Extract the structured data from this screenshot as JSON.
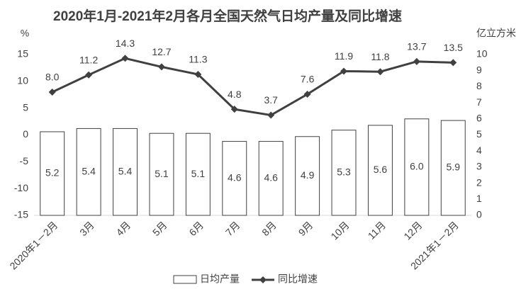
{
  "chart_data": {
    "type": "combo",
    "title": "2020年1月-2021年2月各月全国天然气日均产量及同比增速",
    "y_label": "%",
    "y2_label": "亿立方米",
    "categories": [
      "2020年1－2月",
      "3月",
      "4月",
      "5月",
      "6月",
      "7月",
      "8月",
      "9月",
      "10月",
      "11月",
      "12月",
      "2021年1－2月"
    ],
    "series": [
      {
        "name": "日均产量",
        "type": "bar",
        "axis": "y2",
        "color": "#ffffff",
        "edge_color": "#404040",
        "values": [
          5.2,
          5.4,
          5.4,
          5.1,
          5.1,
          4.6,
          4.6,
          4.9,
          5.3,
          5.6,
          6.0,
          5.9
        ],
        "value_labels": [
          "5.2",
          "5.4",
          "5.4",
          "5.1",
          "5.1",
          "4.6",
          "4.6",
          "4.9",
          "5.3",
          "5.6",
          "6.0",
          "5.9"
        ]
      },
      {
        "name": "同比增速",
        "type": "line",
        "axis": "y",
        "color": "#404040",
        "values": [
          8.0,
          11.2,
          14.3,
          12.7,
          11.3,
          4.8,
          3.7,
          7.6,
          11.9,
          11.8,
          13.7,
          13.5
        ],
        "value_labels": [
          "8.0",
          "11.2",
          "14.3",
          "12.7",
          "11.3",
          "4.8",
          "3.7",
          "7.6",
          "11.9",
          "11.8",
          "13.7",
          "13.5"
        ]
      }
    ],
    "ylim": [
      -15,
      15
    ],
    "yticks": [
      -15,
      -10,
      -5,
      0,
      5,
      10,
      15
    ],
    "y2lim": [
      0,
      10
    ],
    "y2ticks": [
      0,
      1,
      2,
      3,
      4,
      5,
      6,
      7,
      8,
      9,
      10
    ],
    "legend": "bottom"
  }
}
